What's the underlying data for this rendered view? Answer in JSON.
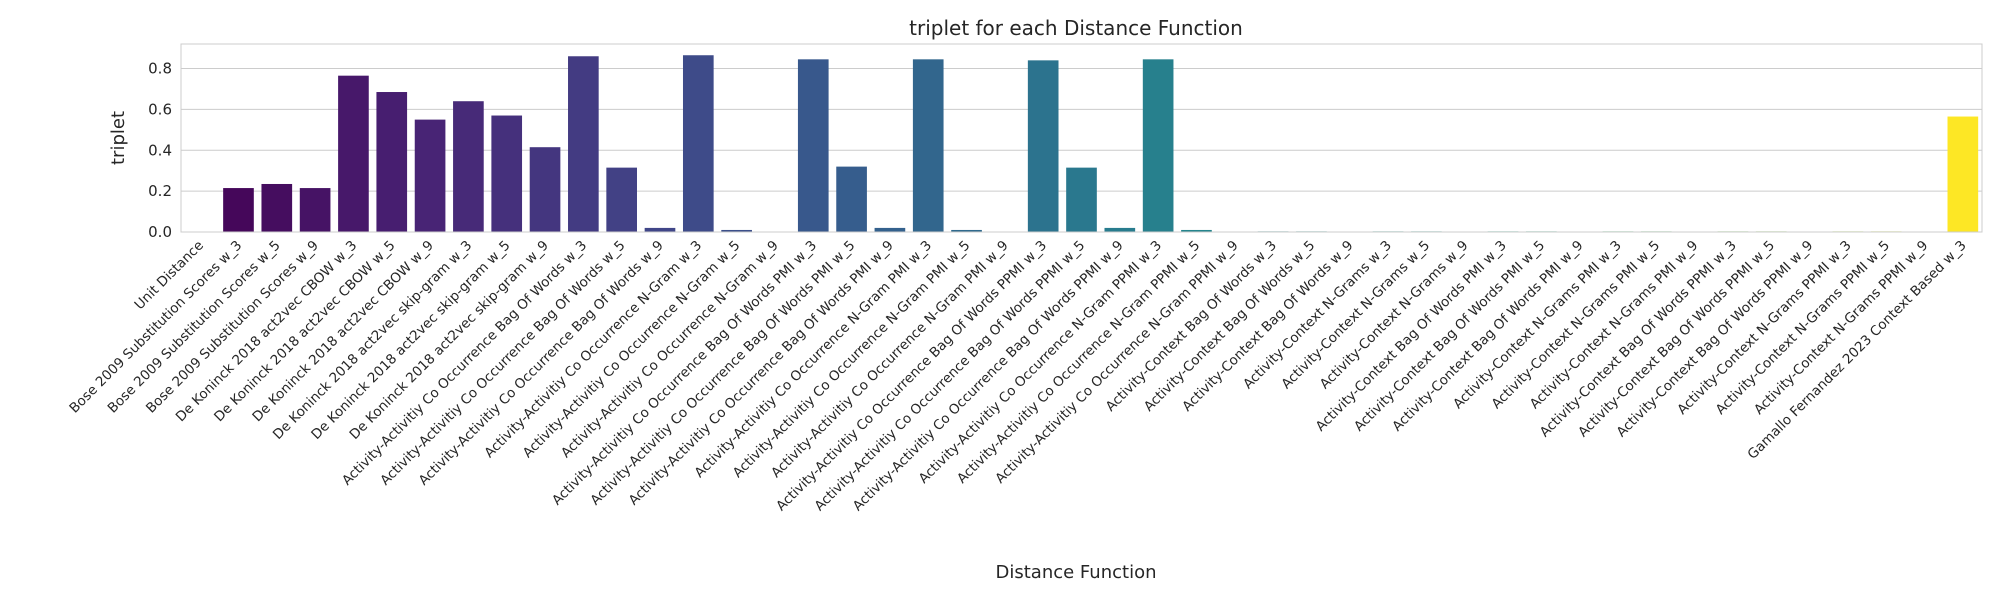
{
  "chart_data": {
    "type": "bar",
    "title": "triplet for each Distance Function",
    "xlabel": "Distance Function",
    "ylabel": "triplet",
    "ylim": [
      0,
      0.92
    ],
    "yticks": [
      0.0,
      0.2,
      0.4,
      0.6,
      0.8
    ],
    "grid": true,
    "palette": "viridis",
    "categories": [
      "Unit Distance",
      "Bose 2009 Substitution Scores w_3",
      "Bose 2009 Substitution Scores w_5",
      "Bose 2009 Substitution Scores w_9",
      "De Koninck 2018 act2vec CBOW w_3",
      "De Koninck 2018 act2vec CBOW w_5",
      "De Koninck 2018 act2vec CBOW w_9",
      "De Koninck 2018 act2vec skip-gram w_3",
      "De Koninck 2018 act2vec skip-gram w_5",
      "De Koninck 2018 act2vec skip-gram w_9",
      "Activity-Activitiy Co Occurrence Bag Of Words w_3",
      "Activity-Activitiy Co Occurrence Bag Of Words w_5",
      "Activity-Activitiy Co Occurrence Bag Of Words w_9",
      "Activity-Activitiy Co Occurrence N-Gram w_3",
      "Activity-Activitiy Co Occurrence N-Gram w_5",
      "Activity-Activitiy Co Occurrence N-Gram w_9",
      "Activity-Activitiy Co Occurrence Bag Of Words PMI w_3",
      "Activity-Activitiy Co Occurrence Bag Of Words PMI w_5",
      "Activity-Activitiy Co Occurrence Bag Of Words PMI w_9",
      "Activity-Activitiy Co Occurrence N-Gram PMI w_3",
      "Activity-Activitiy Co Occurrence N-Gram PMI w_5",
      "Activity-Activitiy Co Occurrence N-Gram PMI w_9",
      "Activity-Activitiy Co Occurrence Bag Of Words PPMI w_3",
      "Activity-Activitiy Co Occurrence Bag Of Words PPMI w_5",
      "Activity-Activitiy Co Occurrence Bag Of Words PPMI w_9",
      "Activity-Activitiy Co Occurrence N-Gram PPMI w_3",
      "Activity-Activitiy Co Occurrence N-Gram PPMI w_5",
      "Activity-Activitiy Co Occurrence N-Gram PPMI w_9",
      "Activity-Context Bag Of Words w_3",
      "Activity-Context Bag Of Words w_5",
      "Activity-Context Bag Of Words w_9",
      "Activity-Context N-Grams w_3",
      "Activity-Context N-Grams w_5",
      "Activity-Context N-Grams w_9",
      "Activity-Context Bag Of Words PMI w_3",
      "Activity-Context Bag Of Words PMI w_5",
      "Activity-Context Bag Of Words PMI w_9",
      "Activity-Context N-Grams PMI w_3",
      "Activity-Context N-Grams PMI w_5",
      "Activity-Context N-Grams PMI w_9",
      "Activity-Context Bag Of Words PPMI w_3",
      "Activity-Context Bag Of Words PPMI w_5",
      "Activity-Context Bag Of Words PPMI w_9",
      "Activity-Context N-Grams PPMI w_3",
      "Activity-Context N-Grams PPMI w_5",
      "Activity-Context N-Grams PPMI w_9",
      "Gamallo Fernandez 2023 Context Based w_3"
    ],
    "values": [
      0.0,
      0.215,
      0.235,
      0.215,
      0.765,
      0.685,
      0.55,
      0.64,
      0.57,
      0.415,
      0.86,
      0.315,
      0.02,
      0.865,
      0.01,
      0.0,
      0.845,
      0.32,
      0.02,
      0.845,
      0.01,
      0.0,
      0.84,
      0.315,
      0.02,
      0.845,
      0.01,
      0.0,
      0.003,
      0.003,
      0.002,
      0.003,
      0.003,
      0.002,
      0.003,
      0.003,
      0.002,
      0.003,
      0.003,
      0.002,
      0.003,
      0.003,
      0.002,
      0.003,
      0.003,
      0.002,
      0.565
    ]
  }
}
